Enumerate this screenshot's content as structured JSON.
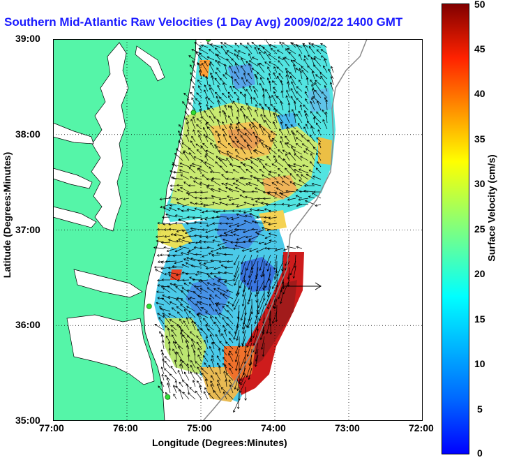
{
  "title": "Southern Mid-Atlantic Raw Velocities (1 Day Avg) 2009/02/22 1400 GMT",
  "xlabel": "Longitude (Degrees:Minutes)",
  "ylabel": "Latitude (Degrees:Minutes)",
  "colorbar_label": "Surface Velocity (cm/s)",
  "x_ticks": [
    "77:00",
    "76:00",
    "75:00",
    "74:00",
    "73:00",
    "72:00"
  ],
  "y_ticks": [
    "39:00",
    "38:00",
    "37:00",
    "36:00",
    "35:00"
  ],
  "colorbar_ticks": [
    "0",
    "5",
    "10",
    "15",
    "20",
    "25",
    "30",
    "35",
    "40",
    "45",
    "50"
  ],
  "colors": {
    "land": "#55f5a8",
    "coast_line": "#000000",
    "title": "#1a1aff",
    "grid": "#000000",
    "station": "#33dd33"
  },
  "chart_data": {
    "type": "heatmap",
    "title": "Southern Mid-Atlantic Raw Velocities (1 Day Avg) 2009/02/22 1400 GMT",
    "xlabel": "Longitude (Degrees:Minutes)",
    "ylabel": "Latitude (Degrees:Minutes)",
    "xlim": [
      -77,
      -72
    ],
    "ylim": [
      35,
      39
    ],
    "colorbar": {
      "label": "Surface Velocity (cm/s)",
      "range": [
        0,
        50
      ],
      "colormap": "jet"
    },
    "grid": true,
    "stations": [
      {
        "lon": -74.9,
        "lat": 39.0
      },
      {
        "lon": -75.1,
        "lat": 38.23
      },
      {
        "lon": -75.7,
        "lat": 36.2
      },
      {
        "lon": -75.45,
        "lat": 35.25
      }
    ]
  }
}
